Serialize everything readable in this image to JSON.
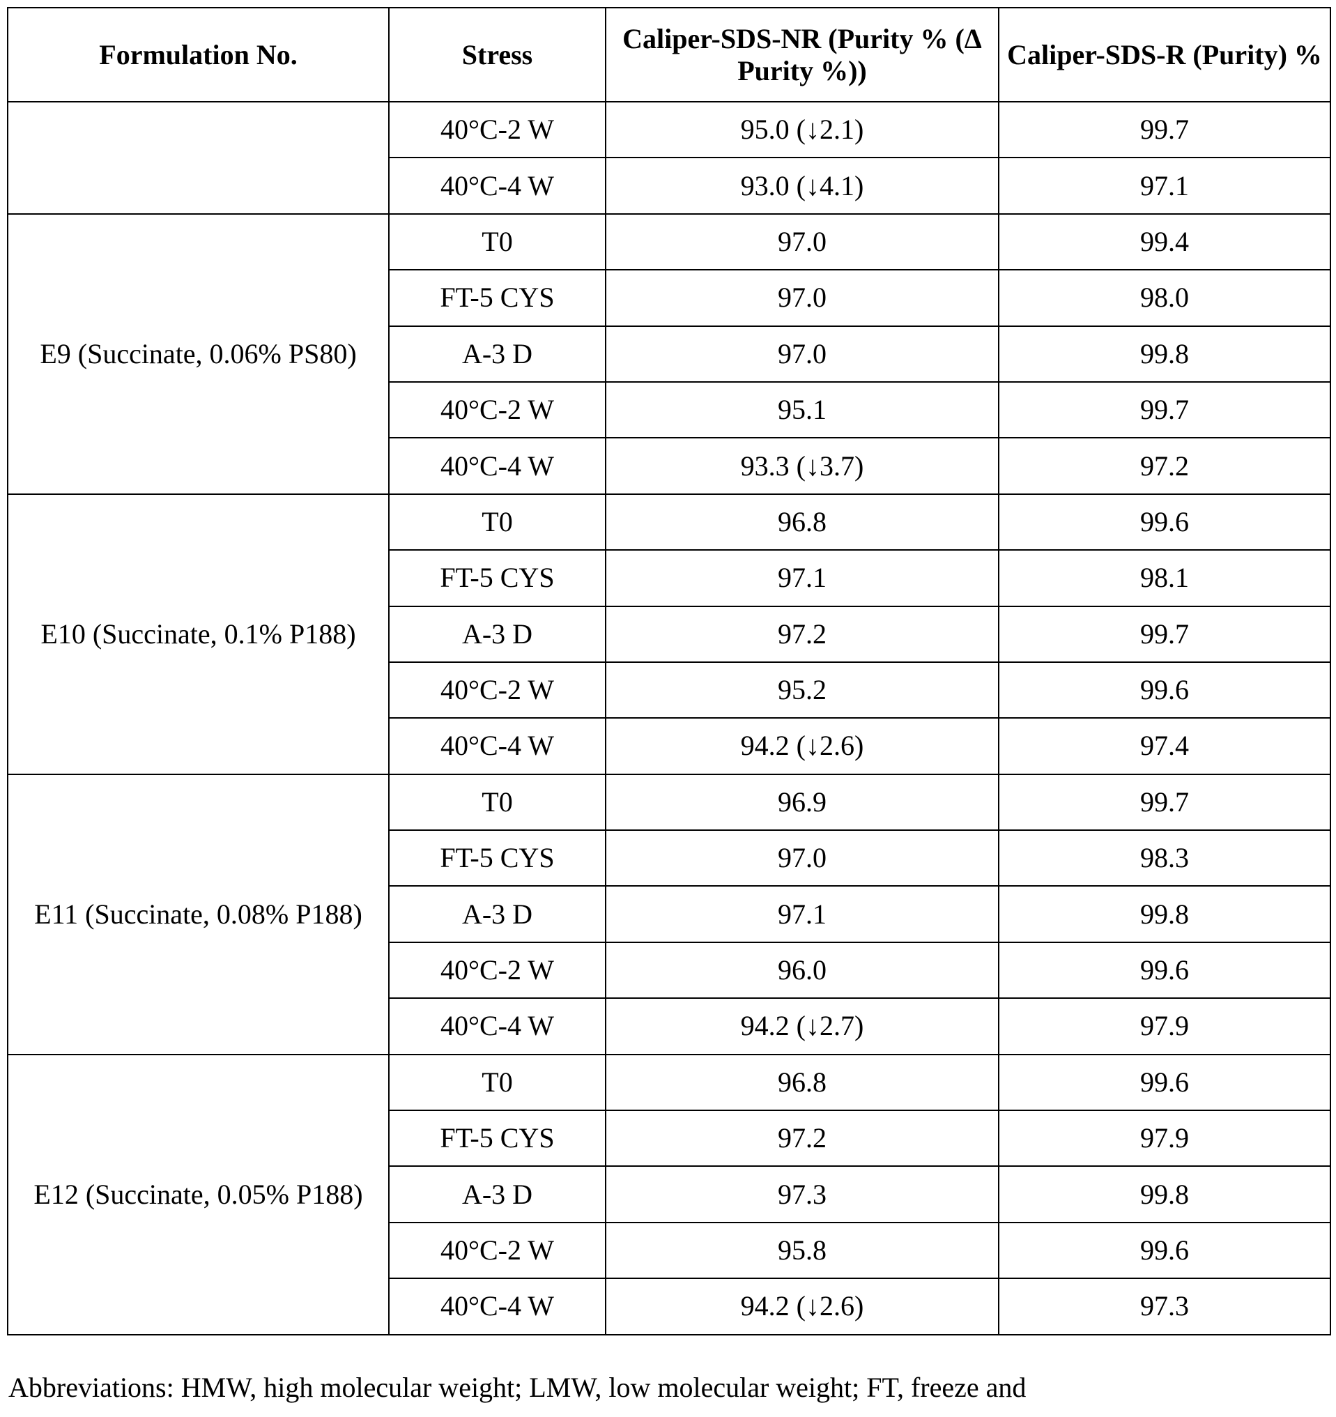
{
  "table": {
    "header": [
      "Formulation No.",
      "Stress",
      "Caliper-SDS-NR (Purity % (Δ Purity %))",
      "Caliper-SDS-R (Purity) %"
    ],
    "groups": [
      {
        "rows": [
          [
            "40°C-2 W",
            "95.0 (↓2.1)",
            "99.7"
          ],
          [
            "40°C-4 W",
            "93.0 (↓4.1)",
            "97.1"
          ]
        ]
      },
      {
        "formulation": "E9 (Succinate, 0.06% PS80)",
        "rows": [
          [
            "T0",
            "97.0",
            "99.4"
          ],
          [
            "FT-5 CYS",
            "97.0",
            "98.0"
          ],
          [
            "A-3 D",
            "97.0",
            "99.8"
          ],
          [
            "40°C-2 W",
            "95.1",
            "99.7"
          ],
          [
            "40°C-4 W",
            "93.3 (↓3.7)",
            "97.2"
          ]
        ]
      },
      {
        "formulation": "E10 (Succinate, 0.1% P188)",
        "rows": [
          [
            "T0",
            "96.8",
            "99.6"
          ],
          [
            "FT-5 CYS",
            "97.1",
            "98.1"
          ],
          [
            "A-3 D",
            "97.2",
            "99.7"
          ],
          [
            "40°C-2 W",
            "95.2",
            "99.6"
          ],
          [
            "40°C-4 W",
            "94.2 (↓2.6)",
            "97.4"
          ]
        ]
      },
      {
        "formulation": "E11 (Succinate, 0.08% P188)",
        "rows": [
          [
            "T0",
            "96.9",
            "99.7"
          ],
          [
            "FT-5 CYS",
            "97.0",
            "98.3"
          ],
          [
            "A-3 D",
            "97.1",
            "99.8"
          ],
          [
            "40°C-2 W",
            "96.0",
            "99.6"
          ],
          [
            "40°C-4 W",
            "94.2 (↓2.7)",
            "97.9"
          ]
        ]
      },
      {
        "formulation": "E12 (Succinate, 0.05% P188)",
        "rows": [
          [
            "T0",
            "96.8",
            "99.6"
          ],
          [
            "FT-5 CYS",
            "97.2",
            "97.9"
          ],
          [
            "A-3 D",
            "97.3",
            "99.8"
          ],
          [
            "40°C-2 W",
            "95.8",
            "99.6"
          ],
          [
            "40°C-4 W",
            "94.2 (↓2.6)",
            "97.3"
          ]
        ]
      }
    ]
  },
  "footnote": "Abbreviations: HMW, high molecular weight; LMW, low molecular weight; FT, freeze and"
}
